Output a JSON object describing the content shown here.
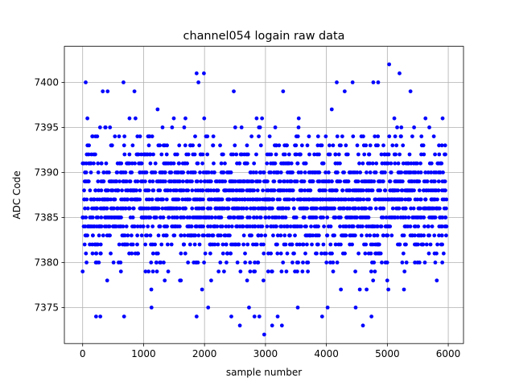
{
  "chart_data": {
    "type": "scatter",
    "title": "channel054 logain raw data",
    "xlabel": "sample number",
    "ylabel": "ADC Code",
    "xlim": [
      -300,
      6250
    ],
    "ylim": [
      7371,
      7404
    ],
    "xticks": [
      0,
      1000,
      2000,
      3000,
      4000,
      5000,
      6000
    ],
    "yticks": [
      7375,
      7380,
      7385,
      7390,
      7395,
      7400
    ],
    "grid": true,
    "legend": "none",
    "marker_color": "#0000ff",
    "series": [
      {
        "x_start": 0,
        "x_end": 5950,
        "x_step": 25,
        "y_min_band": 7377,
        "y_max_band": 7398,
        "y_center": 7387,
        "outliers": [
          {
            "x": 50,
            "y": 7400
          },
          {
            "x": 670,
            "y": 7400
          },
          {
            "x": 1870,
            "y": 7401
          },
          {
            "x": 1990,
            "y": 7401
          },
          {
            "x": 1900,
            "y": 7400
          },
          {
            "x": 4170,
            "y": 7400
          },
          {
            "x": 4430,
            "y": 7400
          },
          {
            "x": 4770,
            "y": 7400
          },
          {
            "x": 4850,
            "y": 7400
          },
          {
            "x": 5030,
            "y": 7402
          },
          {
            "x": 5200,
            "y": 7401
          },
          {
            "x": 2980,
            "y": 7372
          },
          {
            "x": 3110,
            "y": 7373
          },
          {
            "x": 3270,
            "y": 7373
          },
          {
            "x": 2580,
            "y": 7373
          },
          {
            "x": 4600,
            "y": 7373
          },
          {
            "x": 220,
            "y": 7374
          },
          {
            "x": 290,
            "y": 7374
          },
          {
            "x": 680,
            "y": 7374
          },
          {
            "x": 1870,
            "y": 7374
          },
          {
            "x": 2440,
            "y": 7374
          },
          {
            "x": 2820,
            "y": 7374
          },
          {
            "x": 2900,
            "y": 7374
          },
          {
            "x": 3200,
            "y": 7374
          },
          {
            "x": 3930,
            "y": 7374
          },
          {
            "x": 4740,
            "y": 7374
          },
          {
            "x": 1130,
            "y": 7375
          },
          {
            "x": 2060,
            "y": 7375
          },
          {
            "x": 2730,
            "y": 7375
          },
          {
            "x": 3530,
            "y": 7375
          },
          {
            "x": 4020,
            "y": 7375
          },
          {
            "x": 4480,
            "y": 7375
          },
          {
            "x": 2480,
            "y": 7399
          },
          {
            "x": 3290,
            "y": 7399
          },
          {
            "x": 850,
            "y": 7399
          },
          {
            "x": 330,
            "y": 7399
          },
          {
            "x": 410,
            "y": 7399
          },
          {
            "x": 5380,
            "y": 7399
          },
          {
            "x": 4300,
            "y": 7399
          }
        ]
      }
    ]
  }
}
